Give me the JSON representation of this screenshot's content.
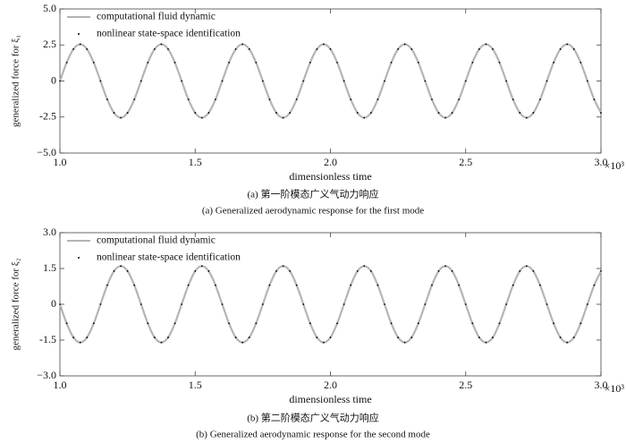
{
  "chart_data": [
    {
      "type": "line",
      "xlabel": "dimensionless time",
      "ylabel": "generalized force for ξ₁",
      "x_multiplier": "×10³",
      "caption_cn": "(a) 第一阶模态广义气动力响应",
      "caption_en": "(a)  Generalized aerodynamic response for the first mode",
      "xlim": [
        1.0,
        3.0
      ],
      "ylim": [
        -5.0,
        5.0
      ],
      "xticks": [
        {
          "value": 1,
          "label": "1.0"
        },
        1.5,
        {
          "value": 2,
          "label": "2.0"
        },
        2.5,
        {
          "value": 3,
          "label": "3.0"
        }
      ],
      "yticks": [
        {
          "value": 5,
          "label": "5.0"
        },
        2.5,
        0,
        -2.5,
        {
          "value": -5,
          "label": "−5.0"
        }
      ],
      "legend": "upper left",
      "x": [
        1,
        1.025,
        1.05,
        1.075,
        1.1,
        1.125,
        1.15,
        1.175,
        1.2,
        1.225,
        1.25,
        1.275,
        1.3,
        1.325,
        1.35,
        1.375,
        1.4,
        1.425,
        1.45,
        1.475,
        1.5,
        1.525,
        1.55,
        1.575,
        1.6,
        1.625,
        1.65,
        1.675,
        1.7,
        1.725,
        1.75,
        1.775,
        1.8,
        1.825,
        1.85,
        1.875,
        1.9,
        1.925,
        1.95,
        1.975,
        2,
        2.025,
        2.05,
        2.075,
        2.1,
        2.125,
        2.15,
        2.175,
        2.2,
        2.225,
        2.25,
        2.275,
        2.3,
        2.325,
        2.35,
        2.375,
        2.4,
        2.425,
        2.45,
        2.475,
        2.5,
        2.525,
        2.55,
        2.575,
        2.6,
        2.625,
        2.65,
        2.675,
        2.7,
        2.725,
        2.75,
        2.775,
        2.8,
        2.825,
        2.85,
        2.875,
        2.9,
        2.925,
        2.95,
        2.975,
        3
      ],
      "series": [
        {
          "name": "computational fluid dynamic",
          "color": "#b4b4b4",
          "style": "line",
          "values": [
            0,
            1.28,
            2.21,
            2.55,
            2.21,
            1.28,
            0,
            -1.28,
            -2.21,
            -2.55,
            -2.21,
            -1.28,
            0,
            1.28,
            2.21,
            2.55,
            2.21,
            1.28,
            0,
            -1.28,
            -2.21,
            -2.55,
            -2.21,
            -1.28,
            0,
            1.28,
            2.21,
            2.55,
            2.21,
            1.28,
            0,
            -1.28,
            -2.21,
            -2.55,
            -2.21,
            -1.28,
            0,
            1.28,
            2.21,
            2.55,
            2.21,
            1.28,
            0,
            -1.28,
            -2.21,
            -2.55,
            -2.21,
            -1.28,
            0,
            1.28,
            2.21,
            2.55,
            2.21,
            1.28,
            0,
            -1.28,
            -2.21,
            -2.55,
            -2.21,
            -1.28,
            0,
            1.28,
            2.21,
            2.55,
            2.21,
            1.28,
            0,
            -1.28,
            -2.21,
            -2.55,
            -2.21,
            -1.28,
            0,
            1.28,
            2.21,
            2.55,
            2.21,
            1.28,
            0,
            -1.28,
            -2.21
          ]
        },
        {
          "name": "nonlinear state-space identification",
          "color": "#000000",
          "style": "dots",
          "values": [
            0,
            1.28,
            2.21,
            2.55,
            2.21,
            1.28,
            0,
            -1.28,
            -2.21,
            -2.55,
            -2.21,
            -1.28,
            0,
            1.28,
            2.21,
            2.55,
            2.21,
            1.28,
            0,
            -1.28,
            -2.21,
            -2.55,
            -2.21,
            -1.28,
            0,
            1.28,
            2.21,
            2.55,
            2.21,
            1.28,
            0,
            -1.28,
            -2.21,
            -2.55,
            -2.21,
            -1.28,
            0,
            1.28,
            2.21,
            2.55,
            2.21,
            1.28,
            0,
            -1.28,
            -2.21,
            -2.55,
            -2.21,
            -1.28,
            0,
            1.28,
            2.21,
            2.55,
            2.21,
            1.28,
            0,
            -1.28,
            -2.21,
            -2.55,
            -2.21,
            -1.28,
            0,
            1.28,
            2.21,
            2.55,
            2.21,
            1.28,
            0,
            -1.28,
            -2.21,
            -2.55,
            -2.21,
            -1.28,
            0,
            1.28,
            2.21,
            2.55,
            2.21,
            1.28,
            0,
            -1.28,
            -2.21
          ]
        }
      ]
    },
    {
      "type": "line",
      "xlabel": "dimensionless time",
      "ylabel": "generalized force for ξ₂",
      "x_multiplier": "×10³",
      "caption_cn": "(b) 第二阶模态广义气动力响应",
      "caption_en": "(b)  Generalized aerodynamic response for the second mode",
      "xlim": [
        1.0,
        3.0
      ],
      "ylim": [
        -3.0,
        3.0
      ],
      "xticks": [
        {
          "value": 1,
          "label": "1.0"
        },
        1.5,
        {
          "value": 2,
          "label": "2.0"
        },
        2.5,
        {
          "value": 3,
          "label": "3.0"
        }
      ],
      "yticks": [
        {
          "value": 3,
          "label": "3.0"
        },
        1.5,
        0,
        -1.5,
        {
          "value": -3,
          "label": "−3.0"
        }
      ],
      "legend": "upper left",
      "x": [
        1,
        1.025,
        1.05,
        1.075,
        1.1,
        1.125,
        1.15,
        1.175,
        1.2,
        1.225,
        1.25,
        1.275,
        1.3,
        1.325,
        1.35,
        1.375,
        1.4,
        1.425,
        1.45,
        1.475,
        1.5,
        1.525,
        1.55,
        1.575,
        1.6,
        1.625,
        1.65,
        1.675,
        1.7,
        1.725,
        1.75,
        1.775,
        1.8,
        1.825,
        1.85,
        1.875,
        1.9,
        1.925,
        1.95,
        1.975,
        2,
        2.025,
        2.05,
        2.075,
        2.1,
        2.125,
        2.15,
        2.175,
        2.2,
        2.225,
        2.25,
        2.275,
        2.3,
        2.325,
        2.35,
        2.375,
        2.4,
        2.425,
        2.45,
        2.475,
        2.5,
        2.525,
        2.55,
        2.575,
        2.6,
        2.625,
        2.65,
        2.675,
        2.7,
        2.725,
        2.75,
        2.775,
        2.8,
        2.825,
        2.85,
        2.875,
        2.9,
        2.925,
        2.95,
        2.975,
        3
      ],
      "series": [
        {
          "name": "computational fluid dynamic",
          "color": "#b4b4b4",
          "style": "line",
          "values": [
            0,
            -0.8,
            -1.39,
            -1.6,
            -1.39,
            -0.8,
            0,
            0.8,
            1.39,
            1.6,
            1.39,
            0.8,
            0,
            -0.8,
            -1.39,
            -1.6,
            -1.39,
            -0.8,
            0,
            0.8,
            1.39,
            1.6,
            1.39,
            0.8,
            0,
            -0.8,
            -1.39,
            -1.6,
            -1.39,
            -0.8,
            0,
            0.8,
            1.39,
            1.6,
            1.39,
            0.8,
            0,
            -0.8,
            -1.39,
            -1.6,
            -1.39,
            -0.8,
            0,
            0.8,
            1.39,
            1.6,
            1.39,
            0.8,
            0,
            -0.8,
            -1.39,
            -1.6,
            -1.39,
            -0.8,
            0,
            0.8,
            1.39,
            1.6,
            1.39,
            0.8,
            0,
            -0.8,
            -1.39,
            -1.6,
            -1.39,
            -0.8,
            0,
            0.8,
            1.39,
            1.6,
            1.39,
            0.8,
            0,
            -0.8,
            -1.39,
            -1.6,
            -1.39,
            -0.8,
            0,
            0.8,
            1.39
          ]
        },
        {
          "name": "nonlinear state-space identification",
          "color": "#000000",
          "style": "dots",
          "values": [
            0,
            -0.8,
            -1.39,
            -1.6,
            -1.39,
            -0.8,
            0,
            0.8,
            1.39,
            1.6,
            1.39,
            0.8,
            0,
            -0.8,
            -1.39,
            -1.6,
            -1.39,
            -0.8,
            0,
            0.8,
            1.39,
            1.6,
            1.39,
            0.8,
            0,
            -0.8,
            -1.39,
            -1.6,
            -1.39,
            -0.8,
            0,
            0.8,
            1.39,
            1.6,
            1.39,
            0.8,
            0,
            -0.8,
            -1.39,
            -1.6,
            -1.39,
            -0.8,
            0,
            0.8,
            1.39,
            1.6,
            1.39,
            0.8,
            0,
            -0.8,
            -1.39,
            -1.6,
            -1.39,
            -0.8,
            0,
            0.8,
            1.39,
            1.6,
            1.39,
            0.8,
            0,
            -0.8,
            -1.39,
            -1.6,
            -1.39,
            -0.8,
            0,
            0.8,
            1.39,
            1.6,
            1.39,
            0.8,
            0,
            -0.8,
            -1.39,
            -1.6,
            -1.39,
            -0.8,
            0,
            0.8,
            1.39
          ]
        }
      ]
    }
  ]
}
